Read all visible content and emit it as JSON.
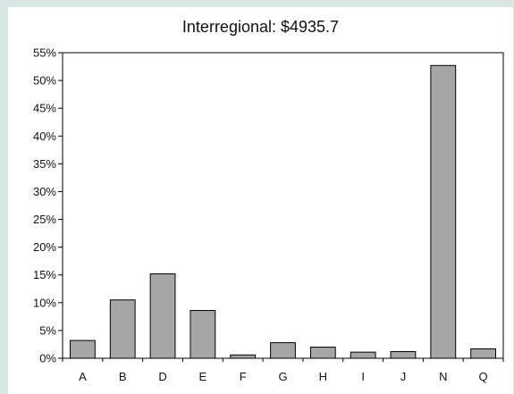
{
  "chart_data": {
    "type": "bar",
    "title": "Interregional:  $4935.7",
    "categories": [
      "A",
      "B",
      "D",
      "E",
      "F",
      "G",
      "H",
      "I",
      "J",
      "N",
      "Q"
    ],
    "values": [
      3.2,
      10.5,
      15.2,
      8.6,
      0.6,
      2.8,
      2.0,
      1.1,
      1.2,
      52.7,
      1.7
    ],
    "ylim": [
      0,
      55
    ],
    "y_ticks": [
      0,
      5,
      10,
      15,
      20,
      25,
      30,
      35,
      40,
      45,
      50,
      55
    ],
    "y_tick_labels": [
      "0%",
      "5%",
      "10%",
      "15%",
      "20%",
      "25%",
      "30%",
      "35%",
      "40%",
      "45%",
      "50%",
      "55%"
    ],
    "xlabel": "",
    "ylabel": "",
    "grid": false,
    "legend": "none",
    "bar_color": "#a6a6a6",
    "background_color": "#d8e6e6"
  }
}
